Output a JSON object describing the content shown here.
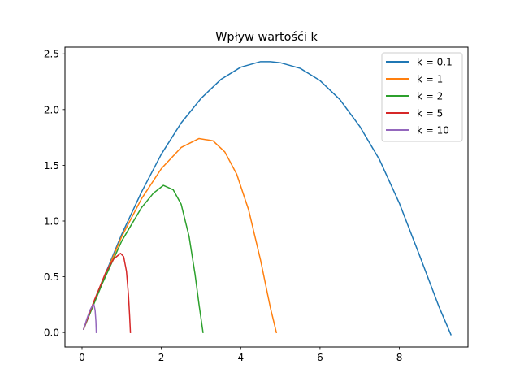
{
  "chart_data": {
    "type": "line",
    "title": "Wpływ wartośći k",
    "xlabel": "",
    "ylabel": "",
    "xlim": [
      -0.43,
      9.73
    ],
    "ylim": [
      -0.13,
      2.56
    ],
    "xticks": [
      0,
      2,
      4,
      6,
      8
    ],
    "xtick_labels": [
      "0",
      "2",
      "4",
      "6",
      "8"
    ],
    "yticks": [
      0.0,
      0.5,
      1.0,
      1.5,
      2.0,
      2.5
    ],
    "ytick_labels": [
      "0.0",
      "0.5",
      "1.0",
      "1.5",
      "2.0",
      "2.5"
    ],
    "grid": false,
    "legend_position": "top-right",
    "series": [
      {
        "name": "k = 0.1",
        "color": "#1f77b4",
        "x": [
          0.04,
          0.5,
          1.0,
          1.5,
          2.0,
          2.5,
          3.0,
          3.5,
          4.0,
          4.5,
          4.75,
          5.0,
          5.5,
          6.0,
          6.5,
          7.0,
          7.5,
          8.0,
          8.5,
          9.0,
          9.3
        ],
        "y": [
          0.03,
          0.45,
          0.88,
          1.26,
          1.6,
          1.88,
          2.1,
          2.27,
          2.38,
          2.43,
          2.43,
          2.42,
          2.37,
          2.26,
          2.09,
          1.85,
          1.55,
          1.16,
          0.7,
          0.23,
          -0.02
        ]
      },
      {
        "name": "k = 1",
        "color": "#ff7f0e",
        "x": [
          0.04,
          0.5,
          1.0,
          1.5,
          2.0,
          2.5,
          2.95,
          3.3,
          3.6,
          3.9,
          4.2,
          4.5,
          4.75,
          4.9
        ],
        "y": [
          0.03,
          0.44,
          0.86,
          1.2,
          1.47,
          1.66,
          1.74,
          1.72,
          1.62,
          1.42,
          1.1,
          0.65,
          0.22,
          0.0
        ]
      },
      {
        "name": "k = 2",
        "color": "#2ca02c",
        "x": [
          0.04,
          0.5,
          1.0,
          1.5,
          1.8,
          2.05,
          2.3,
          2.5,
          2.7,
          2.85,
          2.95,
          3.05
        ],
        "y": [
          0.03,
          0.43,
          0.82,
          1.12,
          1.25,
          1.32,
          1.28,
          1.15,
          0.86,
          0.52,
          0.25,
          0.0
        ]
      },
      {
        "name": "k = 5",
        "color": "#d62728",
        "x": [
          0.04,
          0.3,
          0.6,
          0.8,
          0.97,
          1.05,
          1.12,
          1.17,
          1.2,
          1.22
        ],
        "y": [
          0.03,
          0.28,
          0.54,
          0.66,
          0.71,
          0.68,
          0.55,
          0.34,
          0.15,
          0.0
        ]
      },
      {
        "name": "k = 10",
        "color": "#9467bd",
        "x": [
          0.04,
          0.12,
          0.2,
          0.26,
          0.3,
          0.33,
          0.35,
          0.36
        ],
        "y": [
          0.03,
          0.12,
          0.2,
          0.24,
          0.25,
          0.2,
          0.1,
          0.0
        ]
      }
    ]
  }
}
